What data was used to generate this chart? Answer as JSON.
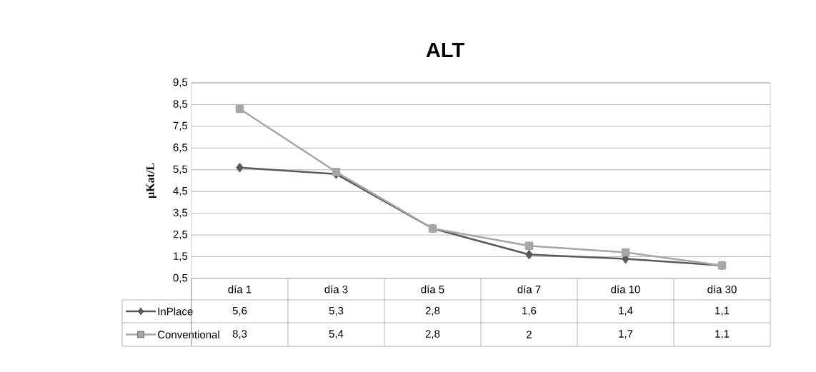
{
  "chart_data": {
    "type": "line",
    "title": "ALT",
    "ylabel": "µKat/L",
    "categories": [
      "día 1",
      "día 3",
      "día 5",
      "día 7",
      "día 10",
      "día 30"
    ],
    "series": [
      {
        "name": "InPlace",
        "color": "#595959",
        "marker": "diamond",
        "values": [
          5.6,
          5.3,
          2.8,
          1.6,
          1.4,
          1.1
        ],
        "value_labels": [
          "5,6",
          "5,3",
          "2,8",
          "1,6",
          "1,4",
          "1,1"
        ]
      },
      {
        "name": "Conventional",
        "color": "#a6a6a6",
        "marker": "square",
        "values": [
          8.3,
          5.4,
          2.8,
          2,
          1.7,
          1.1
        ],
        "value_labels": [
          "8,3",
          "5,4",
          "2,8",
          "2",
          "1,7",
          "1,1"
        ]
      }
    ],
    "ylim": [
      0.5,
      9.5
    ],
    "yticks": [
      {
        "value": 0.5,
        "label": "0,5"
      },
      {
        "value": 1.5,
        "label": "1,5"
      },
      {
        "value": 2.5,
        "label": "2,5"
      },
      {
        "value": 3.5,
        "label": "3,5"
      },
      {
        "value": 4.5,
        "label": "4,5"
      },
      {
        "value": 5.5,
        "label": "5,5"
      },
      {
        "value": 6.5,
        "label": "6,5"
      },
      {
        "value": 7.5,
        "label": "7,5"
      },
      {
        "value": 8.5,
        "label": "8,5"
      },
      {
        "value": 9.5,
        "label": "9,5"
      }
    ],
    "grid": "y",
    "legend": "left",
    "line_style": "solid"
  }
}
